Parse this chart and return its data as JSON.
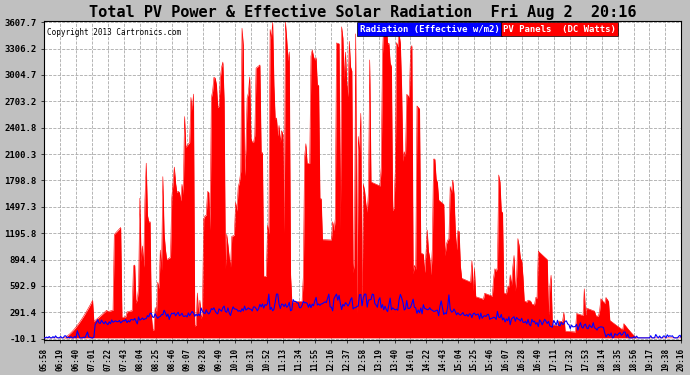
{
  "title": "Total PV Power & Effective Solar Radiation  Fri Aug 2  20:16",
  "copyright": "Copyright 2013 Cartronics.com",
  "legend_radiation": "Radiation (Effective w/m2)",
  "legend_pv": "PV Panels  (DC Watts)",
  "ymin": -10.1,
  "ymax": 3607.7,
  "yticks": [
    3607.7,
    3306.2,
    3004.7,
    2703.2,
    2401.8,
    2100.3,
    1798.8,
    1497.3,
    1195.8,
    894.4,
    592.9,
    291.4,
    -10.1
  ],
  "background_color": "#c0c0c0",
  "plot_bg_color": "#ffffff",
  "grid_color": "#aaaaaa",
  "red_fill_color": "#ff0000",
  "blue_line_color": "#0000ff",
  "title_color": "#000000",
  "title_fontsize": 11,
  "num_points": 500,
  "time_labels": [
    "05:58",
    "06:19",
    "06:40",
    "07:01",
    "07:22",
    "07:43",
    "08:04",
    "08:25",
    "08:46",
    "09:07",
    "09:28",
    "09:49",
    "10:10",
    "10:31",
    "10:52",
    "11:13",
    "11:34",
    "11:55",
    "12:16",
    "12:37",
    "12:58",
    "13:19",
    "13:40",
    "14:01",
    "14:22",
    "14:43",
    "15:04",
    "15:25",
    "15:46",
    "16:07",
    "16:28",
    "16:49",
    "17:11",
    "17:32",
    "17:53",
    "18:14",
    "18:35",
    "18:56",
    "19:17",
    "19:38",
    "20:16"
  ]
}
